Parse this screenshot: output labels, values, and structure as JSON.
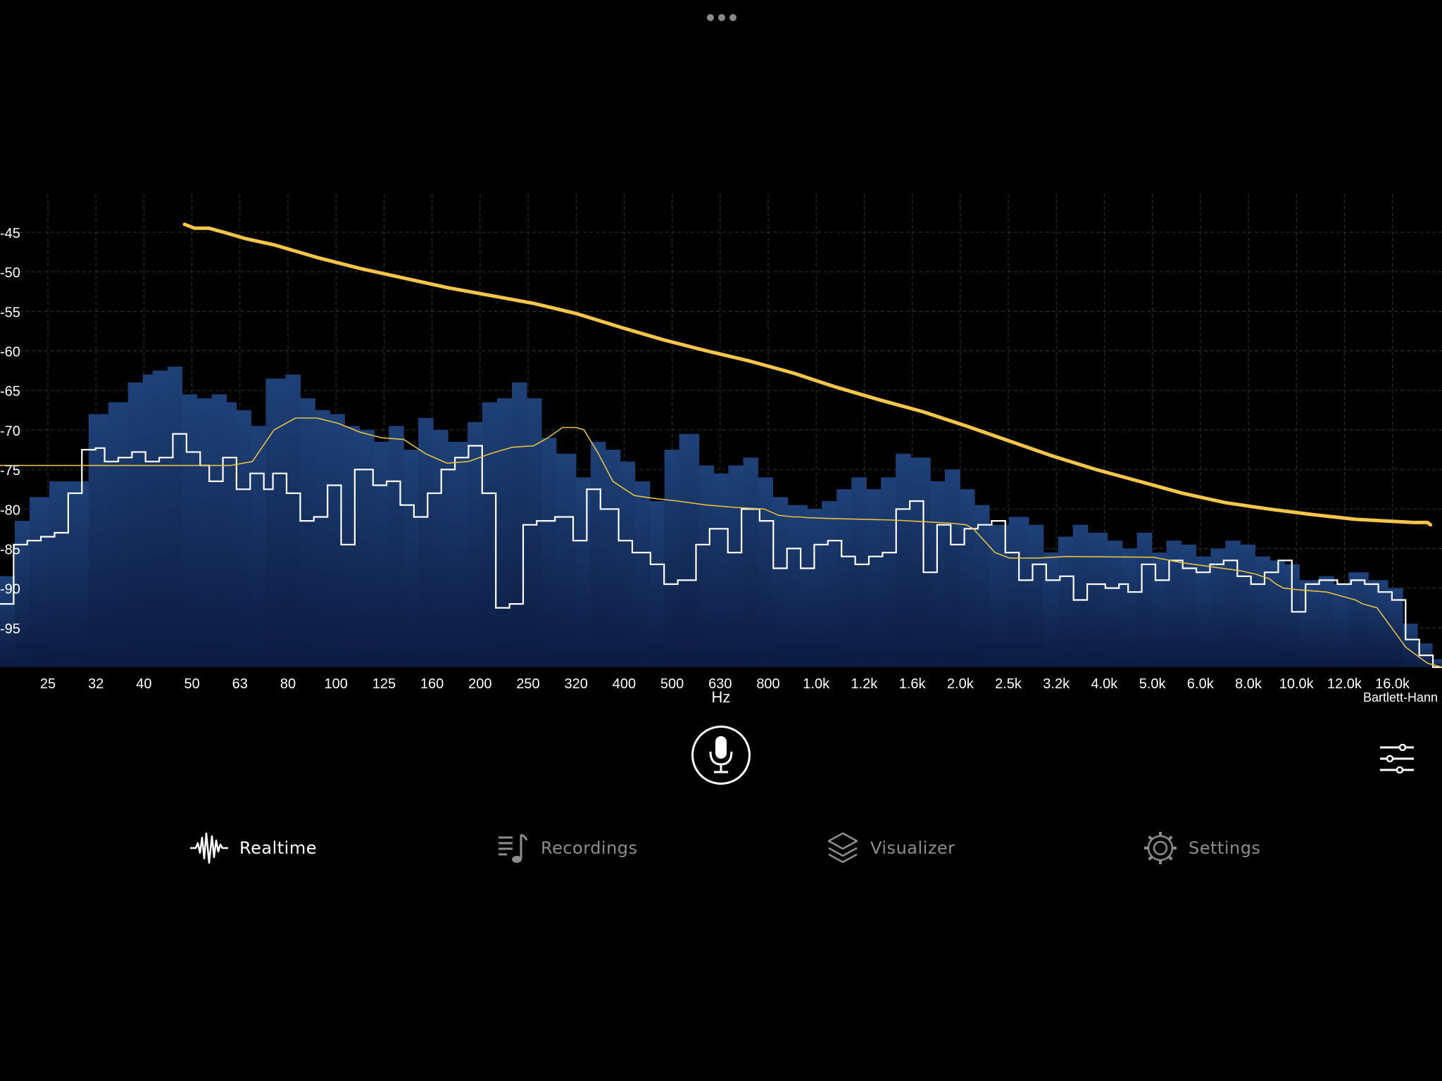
{
  "menu": {
    "icon": "more-dots-icon"
  },
  "chart_data": {
    "type": "bar",
    "ylim": [
      -100,
      -41
    ],
    "y_ticks": [
      "-45",
      "-50",
      "-55",
      "-60",
      "-65",
      "-70",
      "-75",
      "-80",
      "-85",
      "-90",
      "-95"
    ],
    "x_ticks": [
      "25",
      "32",
      "40",
      "50",
      "63",
      "80",
      "100",
      "125",
      "160",
      "200",
      "250",
      "320",
      "400",
      "500",
      "630",
      "800",
      "1.0k",
      "1.2k",
      "1.6k",
      "2.0k",
      "2.5k",
      "3.2k",
      "4.0k",
      "5.0k",
      "6.0k",
      "8.0k",
      "10.0k",
      "12.0k",
      "16.0k"
    ],
    "xlabel": "Hz",
    "window_label": "Bartlett-Hann",
    "colors": {
      "bars": "#1c3a6e",
      "peak_line": "#f5c64a",
      "avg_line": "#e8c040",
      "current_line": "#ffffff",
      "grid": "#3a3a3a"
    },
    "series": [
      {
        "name": "",
        "kind": "bars",
        "values": [
          -88.5,
          -88.5,
          -88.5,
          -81.5,
          -81.5,
          -81.5,
          -78.5,
          -78.5,
          -78.5,
          -78.5,
          -76.5,
          -76.5,
          -76.5,
          -76.5,
          -76.5,
          -76.5,
          -76.5,
          -76.5,
          -68,
          -68,
          -68,
          -68,
          -66.5,
          -66.5,
          -66.5,
          -66.5,
          -64,
          -64,
          -64,
          -63,
          -63,
          -62.5,
          -62.5,
          -62.5,
          -62,
          -62,
          -62,
          -65.5,
          -65.5,
          -65.5,
          -66,
          -66,
          -66,
          -65.5,
          -65.5,
          -65.5,
          -66.5,
          -66.5,
          -67.5,
          -67.5,
          -67.5,
          -69.5,
          -69.5,
          -69.5,
          -63.5,
          -63.5,
          -63.5,
          -63.5,
          -63,
          -63,
          -63,
          -66,
          -66,
          -66,
          -67.5,
          -67.5,
          -67.5,
          -68,
          -68,
          -68,
          -69.5,
          -69.5,
          -69.5,
          -70,
          -70,
          -70,
          -71.5,
          -71.5,
          -71.5,
          -69.5,
          -69.5,
          -69.5,
          -72.5,
          -72.5,
          -72.5,
          -68.5,
          -68.5,
          -68.5,
          -70,
          -70,
          -70,
          -71.5,
          -71.5,
          -71.5,
          -71.5,
          -69,
          -69,
          -69,
          -66.5,
          -66.5,
          -66.5,
          -66,
          -66,
          -66,
          -64,
          -64,
          -64,
          -66,
          -66,
          -66,
          -71,
          -71,
          -71,
          -73,
          -73,
          -73,
          -73,
          -76,
          -76,
          -76,
          -71.5,
          -71.5,
          -71.5,
          -72.5,
          -72.5,
          -72.5,
          -74,
          -74,
          -74,
          -76.5,
          -76.5,
          -76.5,
          -79,
          -79,
          -79,
          -72.5,
          -72.5,
          -72.5,
          -70.5,
          -70.5,
          -70.5,
          -70.5,
          -74.5,
          -74.5,
          -74.5,
          -75.5,
          -75.5,
          -75.5,
          -74.5,
          -74.5,
          -74.5,
          -73.5,
          -73.5,
          -73.5,
          -76,
          -76,
          -76,
          -78.5,
          -78.5,
          -78.5,
          -79.5,
          -79.5,
          -79.5,
          -79.5,
          -80,
          -80,
          -80,
          -79,
          -79,
          -79,
          -77.5,
          -77.5,
          -77.5,
          -76,
          -76,
          -76,
          -77.5,
          -77.5,
          -77.5,
          -76,
          -76,
          -76,
          -73,
          -73,
          -73,
          -73.5,
          -73.5,
          -73.5,
          -73.5,
          -76.5,
          -76.5,
          -76.5,
          -75,
          -75,
          -75,
          -77.5,
          -77.5,
          -77.5,
          -79.5,
          -79.5,
          -79.5,
          -82,
          -82,
          -82,
          -82,
          -81,
          -81,
          -81,
          -81,
          -82,
          -82,
          -82,
          -85.5,
          -85.5,
          -85.5,
          -83.5,
          -83.5,
          -83.5,
          -82,
          -82,
          -82,
          -83,
          -83,
          -83,
          -83,
          -84,
          -84,
          -84,
          -85,
          -85,
          -85,
          -83,
          -83,
          -83,
          -85.5,
          -85.5,
          -85.5,
          -84,
          -84,
          -84,
          -84.5,
          -84.5,
          -84.5,
          -86,
          -86,
          -86,
          -85,
          -85,
          -85,
          -84,
          -84,
          -84,
          -84.5,
          -84.5,
          -84.5,
          -86,
          -86,
          -86,
          -86.5,
          -86.5,
          -86.5,
          -87,
          -87,
          -87,
          -89,
          -89,
          -89,
          -89,
          -88.5,
          -88.5,
          -88.5,
          -89.5,
          -89.5,
          -89.5,
          -88,
          -88,
          -88,
          -88,
          -89,
          -89,
          -89,
          -89,
          -90,
          -90,
          -90,
          -94.5,
          -94.5,
          -94.5,
          -97,
          -97,
          -97,
          -99,
          -99
        ]
      },
      {
        "name": "",
        "kind": "current",
        "values": [
          -92,
          -92,
          -92,
          -84.5,
          -84.5,
          -84.5,
          -84,
          -84,
          -84,
          -83.5,
          -83.5,
          -83.5,
          -83,
          -83,
          -83,
          -78,
          -78,
          -78,
          -72.5,
          -72.5,
          -72.5,
          -72.3,
          -72.3,
          -74,
          -74,
          -74,
          -73.5,
          -73.5,
          -73.5,
          -72.8,
          -72.8,
          -72.8,
          -74,
          -74,
          -74,
          -73.5,
          -73.5,
          -73.5,
          -70.5,
          -70.5,
          -70.5,
          -72.8,
          -72.8,
          -72.8,
          -74.5,
          -74.5,
          -76.5,
          -76.5,
          -76.5,
          -73.5,
          -73.5,
          -73.5,
          -77.5,
          -77.5,
          -77.5,
          -75.5,
          -75.5,
          -75.5,
          -77.5,
          -77.5,
          -75.5,
          -75.5,
          -75.5,
          -78,
          -78,
          -78,
          -81.5,
          -81.5,
          -81.5,
          -81,
          -81,
          -81,
          -77,
          -77,
          -77,
          -84.5,
          -84.5,
          -84.5,
          -75,
          -75,
          -75,
          -75,
          -77,
          -77,
          -77,
          -76.5,
          -76.5,
          -76.5,
          -79.5,
          -79.5,
          -79.5,
          -81,
          -81,
          -81,
          -78,
          -78,
          -78,
          -75,
          -75,
          -75,
          -73.5,
          -73.5,
          -73.5,
          -72,
          -72,
          -72,
          -78,
          -78,
          -78,
          -92.5,
          -92.5,
          -92.5,
          -92,
          -92,
          -92,
          -82,
          -82,
          -82,
          -81.5,
          -81.5,
          -81.5,
          -81.5,
          -81,
          -81,
          -81,
          -81,
          -84,
          -84,
          -84,
          -77.5,
          -77.5,
          -77.5,
          -80,
          -80,
          -80,
          -80,
          -84,
          -84,
          -84,
          -85.5,
          -85.5,
          -85.5,
          -85.5,
          -87,
          -87,
          -87,
          -89.5,
          -89.5,
          -89.5,
          -89,
          -89,
          -89,
          -89,
          -84.5,
          -84.5,
          -84.5,
          -82.5,
          -82.5,
          -82.5,
          -82.5,
          -85.5,
          -85.5,
          -85.5,
          -80,
          -80,
          -80,
          -80,
          -81.5,
          -81.5,
          -81.5,
          -87.5,
          -87.5,
          -87.5,
          -85,
          -85,
          -85,
          -87.5,
          -87.5,
          -87.5,
          -84.5,
          -84.5,
          -84.5,
          -84,
          -84,
          -84,
          -86,
          -86,
          -86,
          -87,
          -87,
          -87,
          -86,
          -86,
          -86,
          -85.5,
          -85.5,
          -85.5,
          -80,
          -80,
          -80,
          -79,
          -79,
          -79,
          -88,
          -88,
          -88,
          -82,
          -82,
          -82,
          -84.5,
          -84.5,
          -84.5,
          -82.5,
          -82.5,
          -82.5,
          -82,
          -82,
          -82,
          -81.5,
          -81.5,
          -81.5,
          -85.5,
          -85.5,
          -85.5,
          -89,
          -89,
          -89,
          -87,
          -87,
          -87,
          -89,
          -89,
          -89,
          -88.5,
          -88.5,
          -88.5,
          -91.5,
          -91.5,
          -91.5,
          -89.5,
          -89.5,
          -89.5,
          -89.5,
          -90,
          -90,
          -90,
          -89.5,
          -89.5,
          -90.5,
          -90.5,
          -90.5,
          -87,
          -87,
          -87,
          -89,
          -89,
          -89,
          -86.5,
          -86.5,
          -86.5,
          -87.5,
          -87.5,
          -87.5,
          -88,
          -88,
          -88,
          -87,
          -87,
          -87,
          -86.5,
          -86.5,
          -86.5,
          -88.5,
          -88.5,
          -88.5,
          -89.5,
          -89.5,
          -89.5,
          -88,
          -88,
          -88,
          -86.5,
          -86.5,
          -86.5,
          -93,
          -93,
          -93,
          -89.5,
          -89.5,
          -89.5,
          -89,
          -89,
          -89,
          -89,
          -89.5,
          -89.5,
          -89.5,
          -89,
          -89,
          -89,
          -89.5,
          -89.5,
          -89.5,
          -90.5,
          -90.5,
          -90.5,
          -91.5,
          -91.5,
          -91.5,
          -96.5,
          -96.5,
          -96.5,
          -98.5,
          -98.5,
          -98.5,
          -100,
          -100
        ]
      },
      {
        "name": "",
        "kind": "average",
        "x": [
          0,
          0.15,
          0.16,
          0.175,
          0.19,
          0.205,
          0.22,
          0.235,
          0.25,
          0.265,
          0.28,
          0.295,
          0.31,
          0.325,
          0.34,
          0.355,
          0.37,
          0.38,
          0.39,
          0.4,
          0.405,
          0.415,
          0.425,
          0.44,
          0.455,
          0.47,
          0.49,
          0.51,
          0.53,
          0.54,
          0.55,
          0.555,
          0.56,
          0.575,
          0.6,
          0.62,
          0.64,
          0.66,
          0.67,
          0.675,
          0.68,
          0.685,
          0.69,
          0.7,
          0.72,
          0.73,
          0.74,
          0.8,
          0.82,
          0.84,
          0.86,
          0.87,
          0.88,
          0.885,
          0.89,
          0.9,
          0.92,
          0.94,
          0.945,
          0.955,
          0.965,
          0.975,
          0.99,
          1
        ],
        "values": [
          -74.5,
          -74.5,
          -74.5,
          -74,
          -70,
          -68.5,
          -68.5,
          -69.2,
          -70.3,
          -71,
          -71.2,
          -73,
          -74.2,
          -74,
          -73,
          -72.2,
          -72,
          -71,
          -69.7,
          -69.7,
          -70,
          -73,
          -76.5,
          -78.3,
          -78.7,
          -79,
          -79.5,
          -79.8,
          -80,
          -80.8,
          -81,
          -81,
          -81.1,
          -81.2,
          -81.3,
          -81.4,
          -81.6,
          -81.8,
          -82,
          -82.5,
          -83.5,
          -84.5,
          -85.5,
          -86.2,
          -86.2,
          -86.1,
          -86,
          -86.1,
          -86.8,
          -87.3,
          -87.8,
          -88.2,
          -88.8,
          -89.5,
          -90,
          -90.2,
          -90.5,
          -91.5,
          -92,
          -92.5,
          -95,
          -97.5,
          -99.5,
          -100
        ]
      },
      {
        "name": "",
        "kind": "peak",
        "x": [
          0.128,
          0.135,
          0.145,
          0.155,
          0.17,
          0.19,
          0.22,
          0.25,
          0.28,
          0.31,
          0.34,
          0.37,
          0.4,
          0.43,
          0.46,
          0.49,
          0.52,
          0.55,
          0.58,
          0.61,
          0.64,
          0.67,
          0.7,
          0.73,
          0.76,
          0.79,
          0.82,
          0.85,
          0.88,
          0.91,
          0.94,
          0.96,
          0.98,
          0.99,
          0.992
        ],
        "values": [
          -44,
          -44.5,
          -44.5,
          -45,
          -45.8,
          -46.6,
          -48.2,
          -49.6,
          -50.8,
          -52,
          -53,
          -54,
          -55.3,
          -57,
          -58.6,
          -60,
          -61.3,
          -62.8,
          -64.6,
          -66.2,
          -67.7,
          -69.5,
          -71.4,
          -73.3,
          -75,
          -76.5,
          -78,
          -79.2,
          -80,
          -80.7,
          -81.3,
          -81.5,
          -81.7,
          -81.7,
          -82
        ]
      }
    ]
  },
  "controls": {
    "mic": "microphone-icon",
    "filters": "sliders-icon"
  },
  "tabs": [
    {
      "label": "Realtime",
      "icon": "waveform-icon",
      "active": true
    },
    {
      "label": "Recordings",
      "icon": "music-list-icon",
      "active": false
    },
    {
      "label": "Visualizer",
      "icon": "layers-icon",
      "active": false
    },
    {
      "label": "Settings",
      "icon": "gear-icon",
      "active": false
    }
  ]
}
